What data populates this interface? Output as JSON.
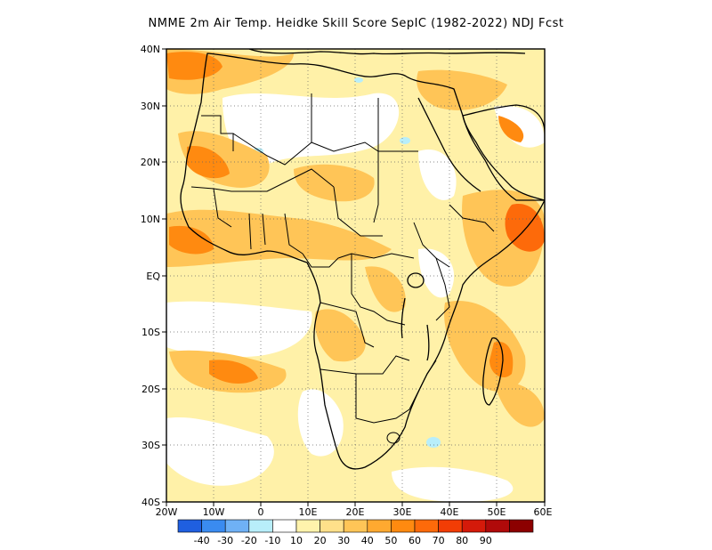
{
  "title": "NMME  2m Air Temp. Heidke Skill Score SepIC (1982-2022) NDJ Fcst",
  "map": {
    "lon_range": [
      -20,
      60
    ],
    "lat_range": [
      -40,
      40
    ],
    "lon_ticks": [
      "20W",
      "10W",
      "0",
      "10E",
      "20E",
      "30E",
      "40E",
      "50E",
      "60E"
    ],
    "lat_ticks": [
      "40N",
      "30N",
      "20N",
      "10N",
      "EQ",
      "10S",
      "20S",
      "30S",
      "40S"
    ],
    "gridlines": "dotted"
  },
  "colorbar": {
    "colors": [
      "#1f5fe0",
      "#3a8bf0",
      "#6fb1f5",
      "#b8eefa",
      "#ffffff",
      "#fff3ac",
      "#ffe08a",
      "#ffc557",
      "#ffa930",
      "#ff8a10",
      "#fd6a0a",
      "#f23d05",
      "#d41a0a",
      "#b00a0a",
      "#8c0000"
    ],
    "labels": [
      "-40",
      "-30",
      "-20",
      "-10",
      "10",
      "20",
      "30",
      "40",
      "50",
      "60",
      "70",
      "80",
      "90"
    ]
  }
}
